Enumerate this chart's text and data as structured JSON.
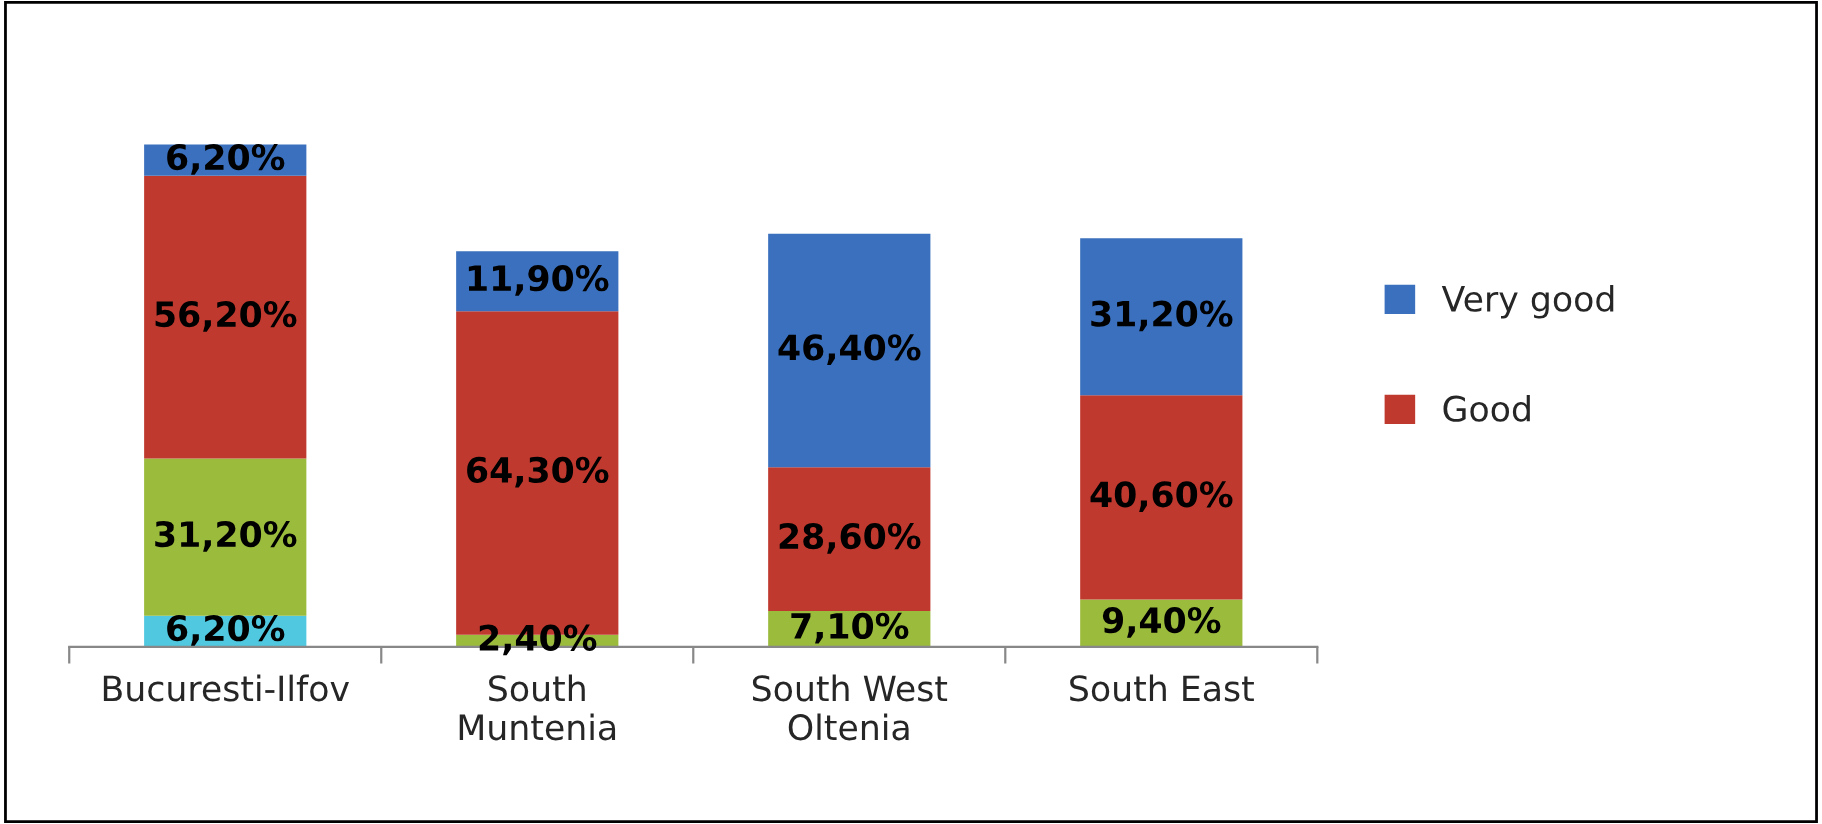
{
  "chart_data": {
    "type": "bar",
    "stacked": true,
    "categories": [
      "Bucuresti-Ilfov",
      "South\nMuntenia",
      "South West\nOltenia",
      "South East"
    ],
    "series": [
      {
        "color": "#4fc8e0",
        "values": [
          6.2,
          null,
          null,
          null
        ],
        "value_labels": [
          "6,20%",
          null,
          null,
          null
        ]
      },
      {
        "color": "#9bbb3c",
        "values": [
          31.2,
          2.4,
          7.1,
          9.4
        ],
        "value_labels": [
          "31,20%",
          "2,40%",
          "7,10%",
          "9,40%"
        ]
      },
      {
        "name": "Good",
        "color": "#c0392f",
        "values": [
          56.2,
          64.3,
          28.6,
          40.6
        ],
        "value_labels": [
          "56,20%",
          "64,30%",
          "28,60%",
          "40,60%"
        ]
      },
      {
        "name": "Very good",
        "color": "#3a70bd",
        "values": [
          6.2,
          11.9,
          46.4,
          31.2
        ],
        "value_labels": [
          "6,20%",
          "11,90%",
          "46,40%",
          "31,20%"
        ]
      }
    ],
    "legend": "right"
  }
}
